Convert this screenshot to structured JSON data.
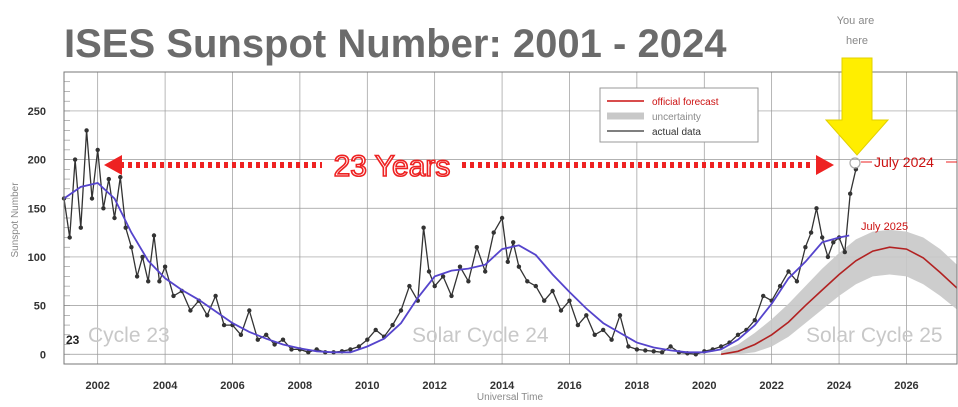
{
  "chart_data": {
    "type": "line",
    "title": "ISES Sunspot Number: 2001 - 2024",
    "xlabel": "Universal Time",
    "ylabel": "Sunspot Number",
    "xlim": [
      2001.0,
      2027.5
    ],
    "ylim": [
      -10,
      290
    ],
    "x_ticks": [
      "2002",
      "2004",
      "2006",
      "2008",
      "2010",
      "2012",
      "2014",
      "2016",
      "2018",
      "2020",
      "2022",
      "2024",
      "2026"
    ],
    "y_ticks": [
      "0",
      "50",
      "100",
      "150",
      "200",
      "250"
    ],
    "grid": true,
    "legend_position": "top-right",
    "legend": [
      "official forecast",
      "uncertainty",
      "actual data"
    ],
    "annotations": {
      "span_text": "23 Years",
      "you_are_here": "You are here",
      "current_label": "July 2024",
      "forecast_peak_label": "July 2025",
      "first_cycle_number": "23"
    },
    "cycle_labels": [
      "Cycle 23",
      "Solar Cycle 24",
      "Solar Cycle 25"
    ],
    "colors": {
      "actual": "#333333",
      "smoothed": "#5544cc",
      "forecast": "#b22222",
      "uncertainty": "#c8c8c8",
      "arrow": "#ee2222",
      "pointer": "#ffee00",
      "grid": "#999999"
    },
    "series": [
      {
        "name": "actual data",
        "x": [
          2001.0,
          2001.17,
          2001.33,
          2001.5,
          2001.67,
          2001.83,
          2002.0,
          2002.17,
          2002.33,
          2002.5,
          2002.67,
          2002.83,
          2003.0,
          2003.17,
          2003.33,
          2003.5,
          2003.67,
          2003.83,
          2004.0,
          2004.25,
          2004.5,
          2004.75,
          2005.0,
          2005.25,
          2005.5,
          2005.75,
          2006.0,
          2006.25,
          2006.5,
          2006.75,
          2007.0,
          2007.25,
          2007.5,
          2007.75,
          2008.0,
          2008.25,
          2008.5,
          2008.75,
          2009.0,
          2009.25,
          2009.5,
          2009.75,
          2010.0,
          2010.25,
          2010.5,
          2010.75,
          2011.0,
          2011.25,
          2011.5,
          2011.67,
          2011.83,
          2012.0,
          2012.25,
          2012.5,
          2012.75,
          2013.0,
          2013.25,
          2013.5,
          2013.75,
          2014.0,
          2014.17,
          2014.33,
          2014.5,
          2014.75,
          2015.0,
          2015.25,
          2015.5,
          2015.75,
          2016.0,
          2016.25,
          2016.5,
          2016.75,
          2017.0,
          2017.25,
          2017.5,
          2017.75,
          2018.0,
          2018.25,
          2018.5,
          2018.75,
          2019.0,
          2019.25,
          2019.5,
          2019.75,
          2020.0,
          2020.25,
          2020.5,
          2020.75,
          2021.0,
          2021.25,
          2021.5,
          2021.75,
          2022.0,
          2022.25,
          2022.5,
          2022.75,
          2023.0,
          2023.17,
          2023.33,
          2023.5,
          2023.67,
          2023.83,
          2024.0,
          2024.17,
          2024.33,
          2024.5
        ],
        "y": [
          160,
          120,
          200,
          130,
          230,
          160,
          210,
          150,
          180,
          140,
          182,
          130,
          110,
          80,
          100,
          75,
          122,
          75,
          90,
          60,
          65,
          45,
          55,
          40,
          60,
          30,
          30,
          20,
          45,
          15,
          20,
          10,
          15,
          5,
          5,
          2,
          5,
          2,
          2,
          3,
          5,
          8,
          15,
          25,
          18,
          30,
          45,
          70,
          55,
          130,
          85,
          70,
          80,
          60,
          90,
          75,
          110,
          85,
          125,
          140,
          95,
          115,
          90,
          75,
          70,
          55,
          65,
          45,
          55,
          30,
          40,
          20,
          25,
          15,
          40,
          8,
          5,
          4,
          3,
          2,
          8,
          2,
          1,
          0,
          3,
          5,
          8,
          12,
          20,
          25,
          35,
          60,
          55,
          70,
          85,
          75,
          110,
          125,
          150,
          120,
          100,
          115,
          120,
          105,
          165,
          190
        ]
      },
      {
        "name": "smoothed",
        "x": [
          2001.0,
          2001.5,
          2002.0,
          2002.5,
          2003.0,
          2003.5,
          2004.0,
          2004.5,
          2005.0,
          2005.5,
          2006.0,
          2006.5,
          2007.0,
          2007.5,
          2008.0,
          2008.5,
          2009.0,
          2009.5,
          2010.0,
          2010.5,
          2011.0,
          2011.5,
          2012.0,
          2012.5,
          2013.0,
          2013.5,
          2014.0,
          2014.5,
          2015.0,
          2015.5,
          2016.0,
          2016.5,
          2017.0,
          2017.5,
          2018.0,
          2018.5,
          2019.0,
          2019.5,
          2020.0,
          2020.5,
          2021.0,
          2021.5,
          2022.0,
          2022.5,
          2023.0,
          2023.5,
          2024.0,
          2024.3
        ],
        "y": [
          160,
          172,
          176,
          160,
          125,
          96,
          78,
          66,
          56,
          44,
          32,
          23,
          16,
          10,
          6,
          3,
          2,
          2,
          8,
          16,
          32,
          58,
          80,
          86,
          88,
          92,
          108,
          112,
          102,
          82,
          64,
          47,
          32,
          22,
          12,
          7,
          4,
          2,
          2,
          5,
          15,
          30,
          52,
          78,
          95,
          115,
          120,
          122
        ]
      },
      {
        "name": "official forecast",
        "x": [
          2020.5,
          2021.0,
          2021.5,
          2022.0,
          2022.5,
          2023.0,
          2023.5,
          2024.0,
          2024.5,
          2025.0,
          2025.5,
          2026.0,
          2026.5,
          2027.0,
          2027.5
        ],
        "y": [
          0,
          3,
          10,
          20,
          33,
          50,
          66,
          82,
          96,
          106,
          110,
          108,
          99,
          84,
          68
        ]
      },
      {
        "name": "uncertainty",
        "x": [
          2020.5,
          2021.0,
          2021.5,
          2022.0,
          2022.5,
          2023.0,
          2023.5,
          2024.0,
          2024.5,
          2025.0,
          2025.5,
          2026.0,
          2026.5,
          2027.0,
          2027.5
        ],
        "lower": [
          0,
          0,
          2,
          8,
          18,
          32,
          46,
          60,
          72,
          80,
          82,
          80,
          72,
          60,
          46
        ],
        "upper": [
          3,
          10,
          22,
          36,
          52,
          70,
          88,
          104,
          118,
          126,
          128,
          126,
          120,
          108,
          92
        ]
      }
    ]
  }
}
